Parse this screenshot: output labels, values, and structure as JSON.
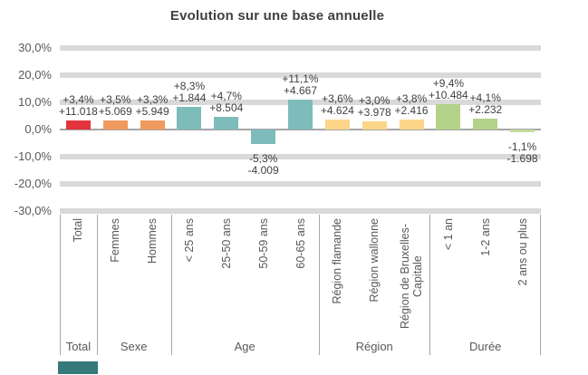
{
  "chart_data": {
    "type": "bar",
    "title": "Evolution sur une base annuelle",
    "xlabel": "",
    "ylabel": "",
    "ylim": [
      -30,
      30
    ],
    "grid": "horizontal-bands",
    "legend": "none",
    "yticks": [
      {
        "value": 30,
        "label": "30,0%"
      },
      {
        "value": 20,
        "label": "20,0%"
      },
      {
        "value": 10,
        "label": "10,0%"
      },
      {
        "value": 0,
        "label": "0,0%"
      },
      {
        "value": -10,
        "label": "-10,0%"
      },
      {
        "value": -20,
        "label": "-20,0%"
      },
      {
        "value": -30,
        "label": "-30,0%"
      }
    ],
    "bars": [
      {
        "category": "Total",
        "pct": 3.4,
        "pct_label": "+3,4%",
        "abs_label": "+11.018",
        "color": "#e3343e"
      },
      {
        "category": "Femmes",
        "pct": 3.5,
        "pct_label": "+3,5%",
        "abs_label": "+5.069",
        "color": "#f09a5e"
      },
      {
        "category": "Hommes",
        "pct": 3.3,
        "pct_label": "+3,3%",
        "abs_label": "+5.949",
        "color": "#f09a5e"
      },
      {
        "category": "< 25 ans",
        "pct": 8.3,
        "pct_label": "+8,3%",
        "abs_label": "+1.844",
        "color": "#7dbcba"
      },
      {
        "category": "25-50 ans",
        "pct": 4.7,
        "pct_label": "+4,7%",
        "abs_label": "+8.504",
        "color": "#7dbcba"
      },
      {
        "category": "50-59 ans",
        "pct": -5.3,
        "pct_label": "-5,3%",
        "abs_label": "-4.009",
        "color": "#7dbcba"
      },
      {
        "category": "60-65 ans",
        "pct": 11.1,
        "pct_label": "+11,1%",
        "abs_label": "+4.667",
        "color": "#7dbcba"
      },
      {
        "category": "Région flamande",
        "pct": 3.6,
        "pct_label": "+3,6%",
        "abs_label": "+4.624",
        "color": "#fcd588"
      },
      {
        "category": "Région wallonne",
        "pct": 3.0,
        "pct_label": "+3,0%",
        "abs_label": "+3.978",
        "color": "#fcd588"
      },
      {
        "category": "Région de Bruxelles-Capitale",
        "pct": 3.8,
        "pct_label": "+3,8%",
        "abs_label": "+2.416",
        "color": "#fcd588"
      },
      {
        "category": "< 1 an",
        "pct": 9.4,
        "pct_label": "+9,4%",
        "abs_label": "+10.484",
        "color": "#b3d28a"
      },
      {
        "category": "1-2 ans",
        "pct": 4.1,
        "pct_label": "+4,1%",
        "abs_label": "+2.232",
        "color": "#b3d28a"
      },
      {
        "category": "2 ans ou plus",
        "pct": -1.1,
        "pct_label": "-1,1%",
        "abs_label": "-1.698",
        "color": "#c4dc9d"
      }
    ],
    "groups": [
      {
        "label": "Total",
        "span": 1
      },
      {
        "label": "Sexe",
        "span": 2
      },
      {
        "label": "Age",
        "span": 4
      },
      {
        "label": "Région",
        "span": 3
      },
      {
        "label": "Durée",
        "span": 3
      }
    ],
    "colors": {
      "gridband": "#d9d9d9",
      "baseline": "#a6a6a6",
      "axis_text": "#595959",
      "label_text": "#404040",
      "corner_marker": "#35797b"
    }
  }
}
